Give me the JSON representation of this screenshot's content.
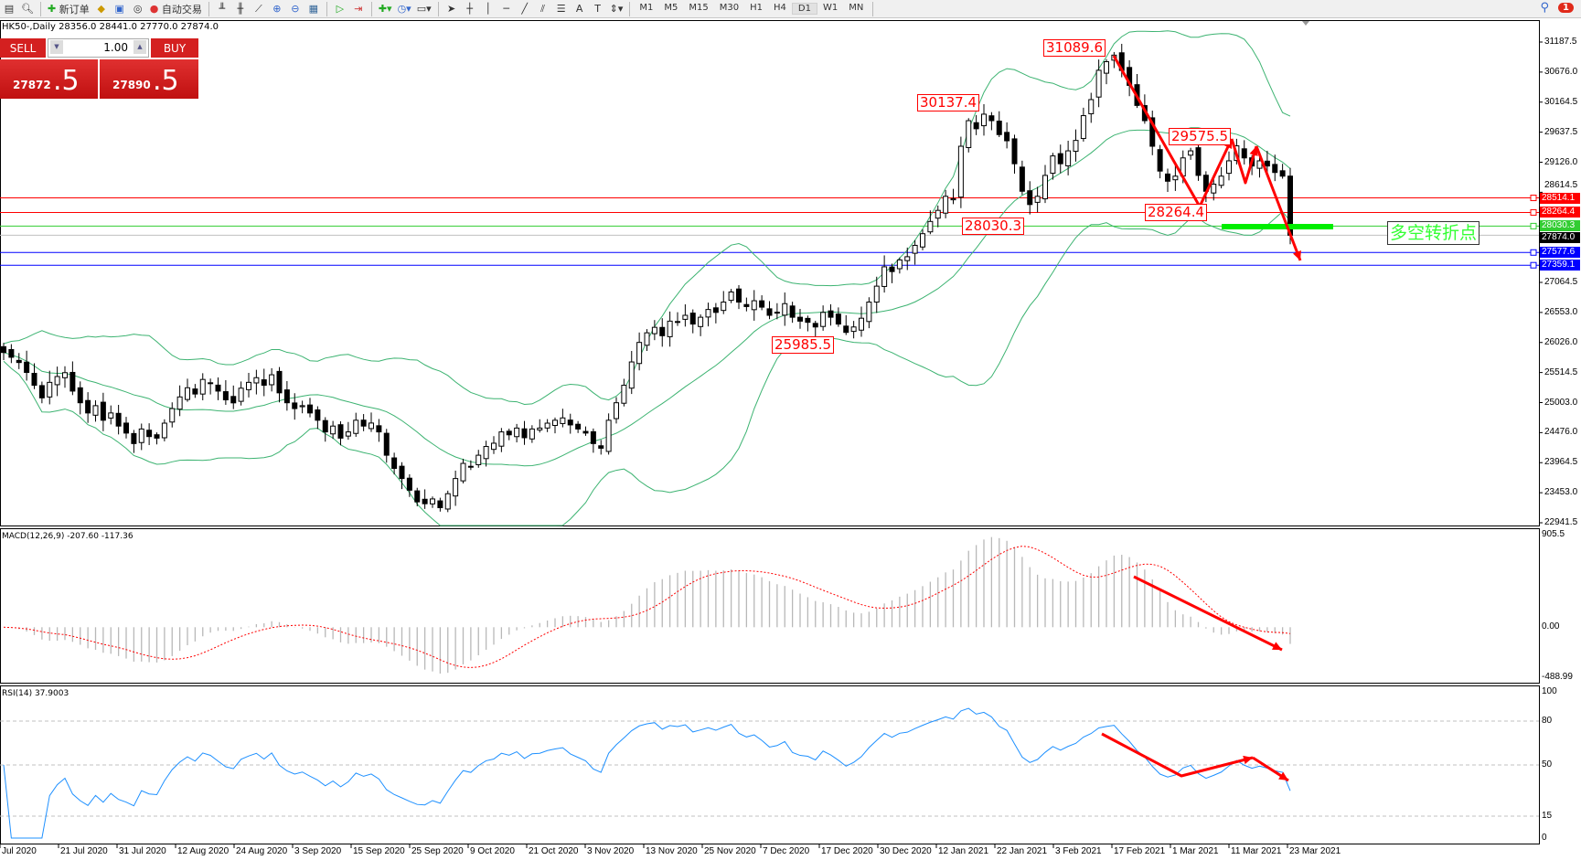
{
  "toolbar": {
    "new_order": "新订单",
    "auto_trading": "自动交易",
    "timeframes": [
      "M1",
      "M5",
      "M15",
      "M30",
      "H1",
      "H4",
      "D1",
      "W1",
      "MN"
    ],
    "active_timeframe": "D1",
    "notifications": "1"
  },
  "chart": {
    "header": "HK50-,Daily  28356.0 28441.0 27770.0 27874.0",
    "trade_panel": {
      "sell": "SELL",
      "buy": "BUY",
      "lot": "1.00",
      "bid_main": "27872",
      "bid_frac": ".5",
      "ask_main": "27890",
      "ask_frac": ".5"
    },
    "price_axis": [
      "31187.5",
      "30676.0",
      "30164.5",
      "29637.5",
      "29126.0",
      "28614.5",
      "",
      "",
      "27064.5",
      "26553.0",
      "26026.0",
      "25514.5",
      "25003.0",
      "24476.0",
      "23964.5",
      "23453.0",
      "22941.5"
    ],
    "price_range": [
      22941.5,
      31187.5
    ],
    "hlines": [
      {
        "value": "28514.1",
        "color": "#ff0000"
      },
      {
        "value": "28264.4",
        "color": "#ff0000"
      },
      {
        "value": "28030.3",
        "color": "#32cd32"
      },
      {
        "value": "27874.0",
        "color": "#000000",
        "current": true
      },
      {
        "value": "27577.6",
        "color": "#0000ff"
      },
      {
        "value": "27359.1",
        "color": "#0000ff"
      }
    ],
    "annotations": [
      "31089.6",
      "30137.4",
      "29575.5",
      "28264.4",
      "28030.3",
      "25985.5"
    ],
    "turning_point_label": "多空转折点",
    "colors": {
      "bands": "#3cb371",
      "arrows": "#ff0000",
      "macd_signal": "#ff0000",
      "rsi": "#1e90ff",
      "highlight": "#00ee00"
    },
    "closes": [
      25862,
      25780,
      25690,
      25520,
      25300,
      25084,
      25350,
      25450,
      25516,
      25200,
      25000,
      24825,
      24950,
      24700,
      24825,
      24600,
      24480,
      24300,
      24550,
      24420,
      24393,
      24650,
      24900,
      25100,
      25257,
      25150,
      25400,
      25343,
      25200,
      25050,
      24998,
      25250,
      25350,
      25430,
      25300,
      25480,
      25170,
      25000,
      24900,
      24950,
      24825,
      24700,
      24500,
      24600,
      24393,
      24500,
      24700,
      24600,
      24652,
      24500,
      24100,
      23874,
      23700,
      23500,
      23300,
      23268,
      23350,
      23200,
      23440,
      23700,
      23960,
      23900,
      24100,
      24250,
      24306,
      24500,
      24450,
      24566,
      24400,
      24550,
      24566,
      24650,
      24700,
      24740,
      24620,
      24550,
      24480,
      24300,
      24220,
      24700,
      25000,
      25300,
      25700,
      26035,
      26200,
      26294,
      26150,
      26400,
      26380,
      26500,
      26350,
      26467,
      26600,
      26550,
      26727,
      26900,
      26727,
      26650,
      26750,
      26640,
      26500,
      26553,
      26700,
      26467,
      26400,
      26380,
      26300,
      26550,
      26467,
      26350,
      26207,
      26300,
      26450,
      26727,
      27000,
      27332,
      27250,
      27450,
      27505,
      27700,
      27900,
      28110,
      28300,
      28541,
      28500,
      29400,
      29839,
      29700,
      29950,
      29839,
      29600,
      29494,
      29100,
      28628,
      28400,
      28541,
      28900,
      29234,
      29100,
      29321,
      29500,
      29925,
      30200,
      30703,
      30850,
      30963,
      30700,
      30444,
      30100,
      29839,
      29400,
      28974,
      28800,
      28887,
      29200,
      29321,
      28900,
      28628,
      28750,
      28887,
      29150,
      29407,
      29200,
      29061,
      29150,
      29061,
      28950,
      28887,
      27874
    ]
  },
  "macd": {
    "label": "MACD(12,26,9) -207.60 -117.36",
    "axis": [
      "905.5",
      "0.00",
      "-488.99"
    ],
    "range": [
      -488.99,
      905.5
    ]
  },
  "rsi": {
    "label": "RSI(14) 37.9003",
    "axis": [
      "100",
      "80",
      "50",
      "15",
      "0"
    ],
    "levels": [
      80,
      50,
      15
    ]
  },
  "dates": [
    "Jul 2020",
    "21 Jul 2020",
    "31 Jul 2020",
    "12 Aug 2020",
    "24 Aug 2020",
    "3 Sep 2020",
    "15 Sep 2020",
    "25 Sep 2020",
    "9 Oct 2020",
    "21 Oct 2020",
    "3 Nov 2020",
    "13 Nov 2020",
    "25 Nov 2020",
    "7 Dec 2020",
    "17 Dec 2020",
    "30 Dec 2020",
    "12 Jan 2021",
    "22 Jan 2021",
    "3 Feb 2021",
    "17 Feb 2021",
    "1 Mar 2021",
    "11 Mar 2021",
    "23 Mar 2021"
  ]
}
